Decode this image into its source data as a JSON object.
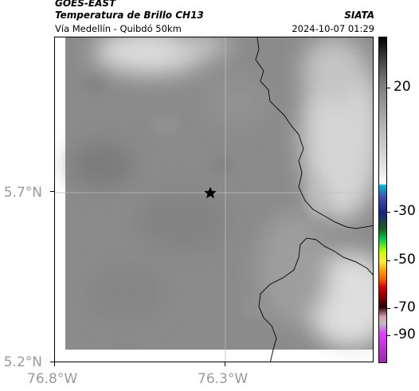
{
  "header": {
    "satellite": "GOES-EAST",
    "product": "Temperatura de Brillo CH13",
    "organization": "SIATA",
    "subtitle": "Vía Medellín - Quibdó 50km",
    "timestamp": "2024-10-07 01:29"
  },
  "map": {
    "lat_labels": [
      "5.7°N",
      "5.2°N"
    ],
    "lon_labels": [
      "76.8°W",
      "76.3°W"
    ],
    "marker_icon": "star-icon",
    "marker_color": "#000000",
    "base_gray": "#8a8a8a",
    "cloud_color": "#d8d8d8"
  },
  "colorbar": {
    "tick_labels": [
      "20",
      "-30",
      "-50",
      "-70",
      "-90"
    ],
    "colors": [
      "#000000",
      "#ffffff",
      "#00bcd4",
      "#1a237e",
      "#00c853",
      "#ffeb3b",
      "#ff6d00",
      "#d50000",
      "#4a0000",
      "#e040fb"
    ]
  }
}
